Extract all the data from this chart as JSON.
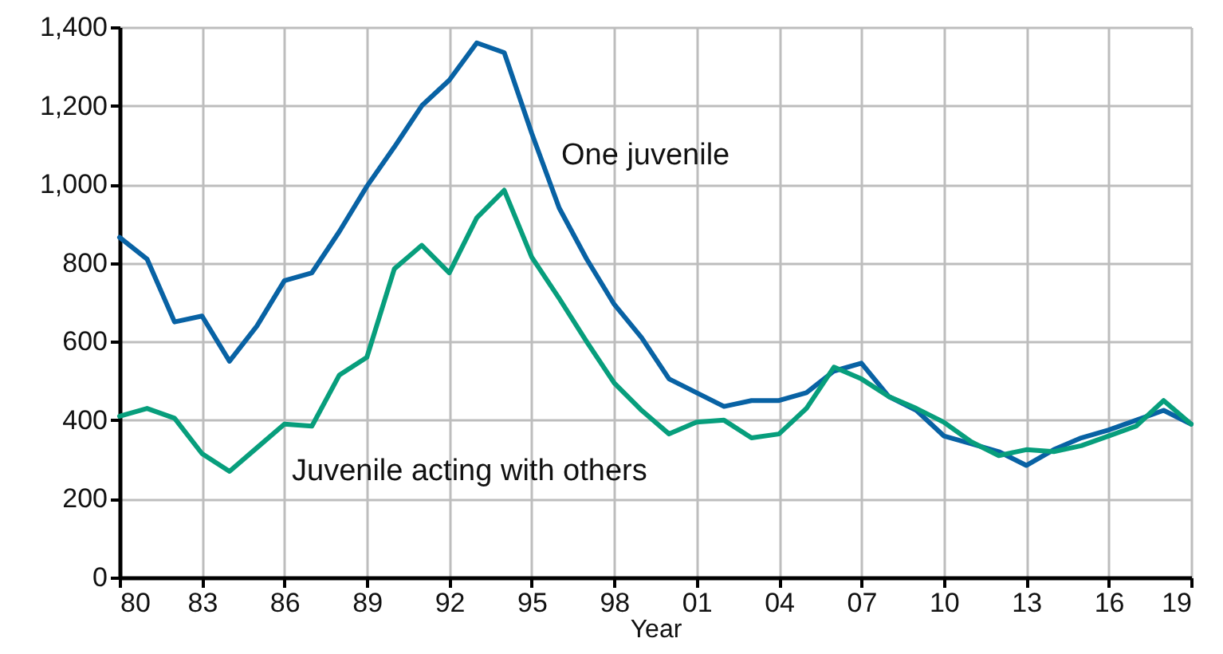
{
  "chart_data": {
    "type": "line",
    "xlabel": "Year",
    "x": [
      1980,
      1981,
      1982,
      1983,
      1984,
      1985,
      1986,
      1987,
      1988,
      1989,
      1990,
      1991,
      1992,
      1993,
      1994,
      1995,
      1996,
      1997,
      1998,
      1999,
      2000,
      2001,
      2002,
      2003,
      2004,
      2005,
      2006,
      2007,
      2008,
      2009,
      2010,
      2011,
      2012,
      2013,
      2014,
      2015,
      2016,
      2017,
      2018,
      2019
    ],
    "series": [
      {
        "name": "One juvenile",
        "color": "#0862a4",
        "values": [
          865,
          810,
          650,
          665,
          550,
          640,
          755,
          775,
          880,
          995,
          1095,
          1200,
          1265,
          1360,
          1335,
          1130,
          940,
          810,
          695,
          610,
          505,
          470,
          435,
          450,
          450,
          470,
          525,
          545,
          460,
          425,
          360,
          340,
          320,
          285,
          325,
          355,
          375,
          400,
          425,
          390
        ]
      },
      {
        "name": "Juvenile acting with others",
        "color": "#079e7c",
        "values": [
          410,
          430,
          405,
          315,
          270,
          330,
          390,
          385,
          515,
          560,
          785,
          845,
          775,
          915,
          985,
          815,
          710,
          600,
          495,
          425,
          365,
          395,
          400,
          355,
          365,
          430,
          535,
          505,
          460,
          430,
          395,
          345,
          310,
          325,
          320,
          335,
          360,
          385,
          450,
          390
        ]
      }
    ],
    "xlim": [
      1980,
      2019
    ],
    "xticks": [
      {
        "value": 1980,
        "label": "80"
      },
      {
        "value": 1983,
        "label": "83"
      },
      {
        "value": 1986,
        "label": "86"
      },
      {
        "value": 1989,
        "label": "89"
      },
      {
        "value": 1992,
        "label": "92"
      },
      {
        "value": 1995,
        "label": "95"
      },
      {
        "value": 1998,
        "label": "98"
      },
      {
        "value": 2001,
        "label": "01"
      },
      {
        "value": 2004,
        "label": "04"
      },
      {
        "value": 2007,
        "label": "07"
      },
      {
        "value": 2010,
        "label": "10"
      },
      {
        "value": 2013,
        "label": "13"
      },
      {
        "value": 2016,
        "label": "16"
      },
      {
        "value": 2019,
        "label": "19"
      }
    ],
    "ylim": [
      0,
      1400
    ],
    "yticks": [
      0,
      200,
      400,
      600,
      800,
      {
        "value": 1000,
        "label": "1,000"
      },
      {
        "value": 1200,
        "label": "1,200"
      },
      {
        "value": 1400,
        "label": "1,400"
      }
    ],
    "grid": true,
    "line_style": "solid"
  }
}
